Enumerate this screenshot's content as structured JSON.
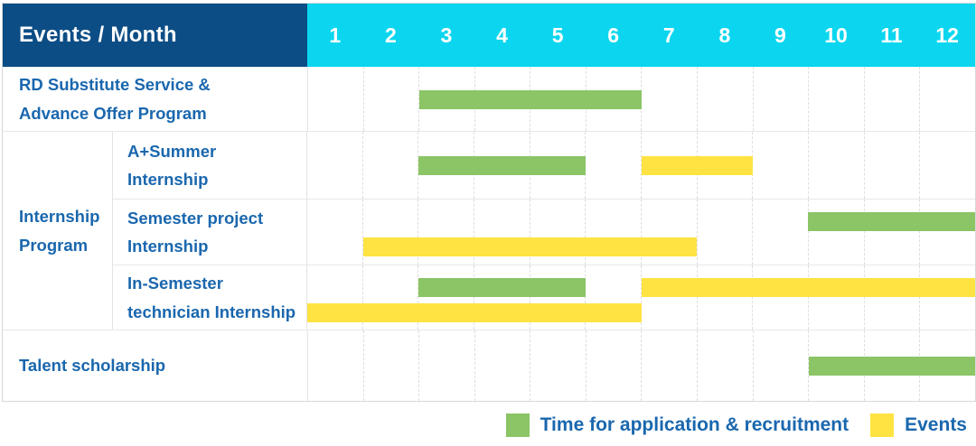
{
  "header": {
    "title": "Events / Month"
  },
  "colors": {
    "header_bg": "#0d4d85",
    "month_header_bg": "#0cd6ef",
    "label_text": "#1a67ae",
    "application_green": "#8bc566",
    "events_yellow": "#ffe342"
  },
  "chart_data": {
    "type": "gantt",
    "title": "Events / Month",
    "x_unit": "month",
    "x_range": [
      1,
      12
    ],
    "months": [
      "1",
      "2",
      "3",
      "4",
      "5",
      "6",
      "7",
      "8",
      "9",
      "10",
      "11",
      "12"
    ],
    "group_label": "Internship\nProgram",
    "series_colors": {
      "application": "#8bc566",
      "events": "#ffe342"
    },
    "rows": [
      {
        "key": "rd",
        "label": "RD Substitute Service &\nAdvance Offer Program",
        "group": null,
        "bars": [
          {
            "series": "application",
            "start_month": 3,
            "end_month": 6,
            "lane": "center"
          }
        ]
      },
      {
        "key": "a_summer",
        "label": "A+Summer\nInternship",
        "group": "Internship Program",
        "bars": [
          {
            "series": "application",
            "start_month": 3,
            "end_month": 5,
            "lane": "center"
          },
          {
            "series": "events",
            "start_month": 7,
            "end_month": 8,
            "lane": "center"
          }
        ]
      },
      {
        "key": "semester_project",
        "label": "Semester project\nInternship",
        "group": "Internship Program",
        "bars": [
          {
            "series": "application",
            "start_month": 10,
            "end_month": 12,
            "lane": "top"
          },
          {
            "series": "events",
            "start_month": 2,
            "end_month": 7,
            "lane": "bottom"
          }
        ]
      },
      {
        "key": "in_semester",
        "label": "In-Semester\ntechnician Internship",
        "group": "Internship Program",
        "bars": [
          {
            "series": "application",
            "start_month": 3,
            "end_month": 5,
            "lane": "top"
          },
          {
            "series": "events",
            "start_month": 7,
            "end_month": 12,
            "lane": "top"
          },
          {
            "series": "events",
            "start_month": 1,
            "end_month": 6,
            "lane": "bottom"
          }
        ]
      },
      {
        "key": "talent",
        "label": "Talent scholarship",
        "group": null,
        "bars": [
          {
            "series": "application",
            "start_month": 10,
            "end_month": 12,
            "lane": "center"
          }
        ]
      }
    ],
    "legend": [
      {
        "series": "application",
        "label": "Time for application & recruitment",
        "color": "#8bc566"
      },
      {
        "series": "events",
        "label": "Events",
        "color": "#ffe342"
      }
    ]
  }
}
